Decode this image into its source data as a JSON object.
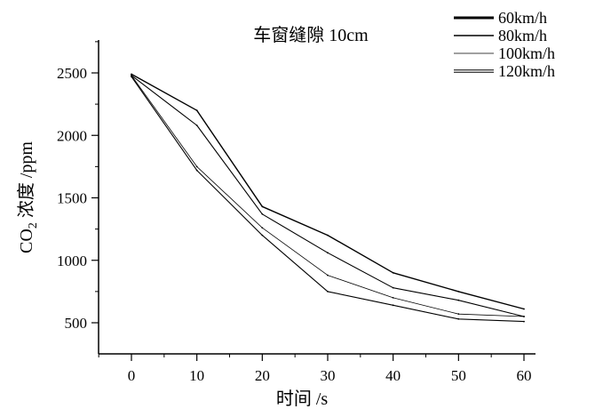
{
  "chart_data": {
    "type": "line",
    "title": "车窗缝隙 10cm",
    "xlabel": "时间 /s",
    "ylabel": "CO2 浓度 /ppm",
    "xlim": [
      -5,
      60
    ],
    "ylim": [
      250,
      2750
    ],
    "x_ticks": [
      "0",
      "10",
      "20",
      "30",
      "40",
      "50",
      "60"
    ],
    "y_ticks": [
      "500",
      "1000",
      "1500",
      "2000",
      "2500"
    ],
    "grid": false,
    "legend_position": "top-right",
    "x": [
      0,
      10,
      20,
      30,
      40,
      50,
      60
    ],
    "series": [
      {
        "name": "60km/h",
        "values": [
          2490,
          2200,
          1430,
          1200,
          900,
          750,
          610
        ]
      },
      {
        "name": "80km/h",
        "values": [
          2480,
          2080,
          1370,
          1060,
          780,
          680,
          550
        ]
      },
      {
        "name": "100km/h",
        "values": [
          2480,
          1750,
          1260,
          880,
          700,
          570,
          550
        ]
      },
      {
        "name": "120km/h",
        "values": [
          2470,
          1720,
          1200,
          750,
          640,
          530,
          510
        ]
      }
    ]
  }
}
